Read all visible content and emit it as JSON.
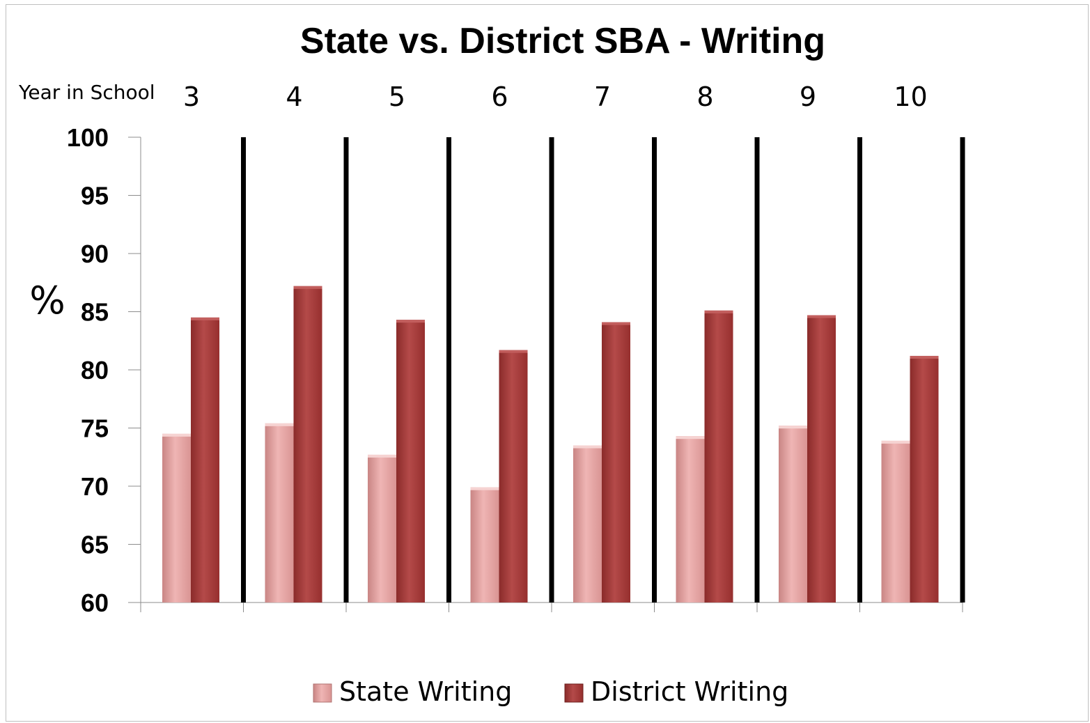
{
  "chart_data": {
    "type": "bar",
    "title": "State vs. District SBA - Writing",
    "xlabel": "Year in School",
    "ylabel": "%",
    "categories": [
      "3",
      "4",
      "5",
      "6",
      "7",
      "8",
      "9",
      "10"
    ],
    "ylim": [
      60,
      100
    ],
    "yticks": [
      100,
      95,
      90,
      85,
      80,
      75,
      70,
      65,
      60
    ],
    "grid": false,
    "legend_position": "bottom",
    "series": [
      {
        "name": "State Writing",
        "color": "#e3a09f",
        "values": [
          74.5,
          75.4,
          72.7,
          69.9,
          73.5,
          74.3,
          75.2,
          73.9
        ]
      },
      {
        "name": "District Writing",
        "color": "#a53b3a",
        "values": [
          84.5,
          87.2,
          84.3,
          81.7,
          84.1,
          85.1,
          84.7,
          81.2
        ]
      }
    ]
  }
}
